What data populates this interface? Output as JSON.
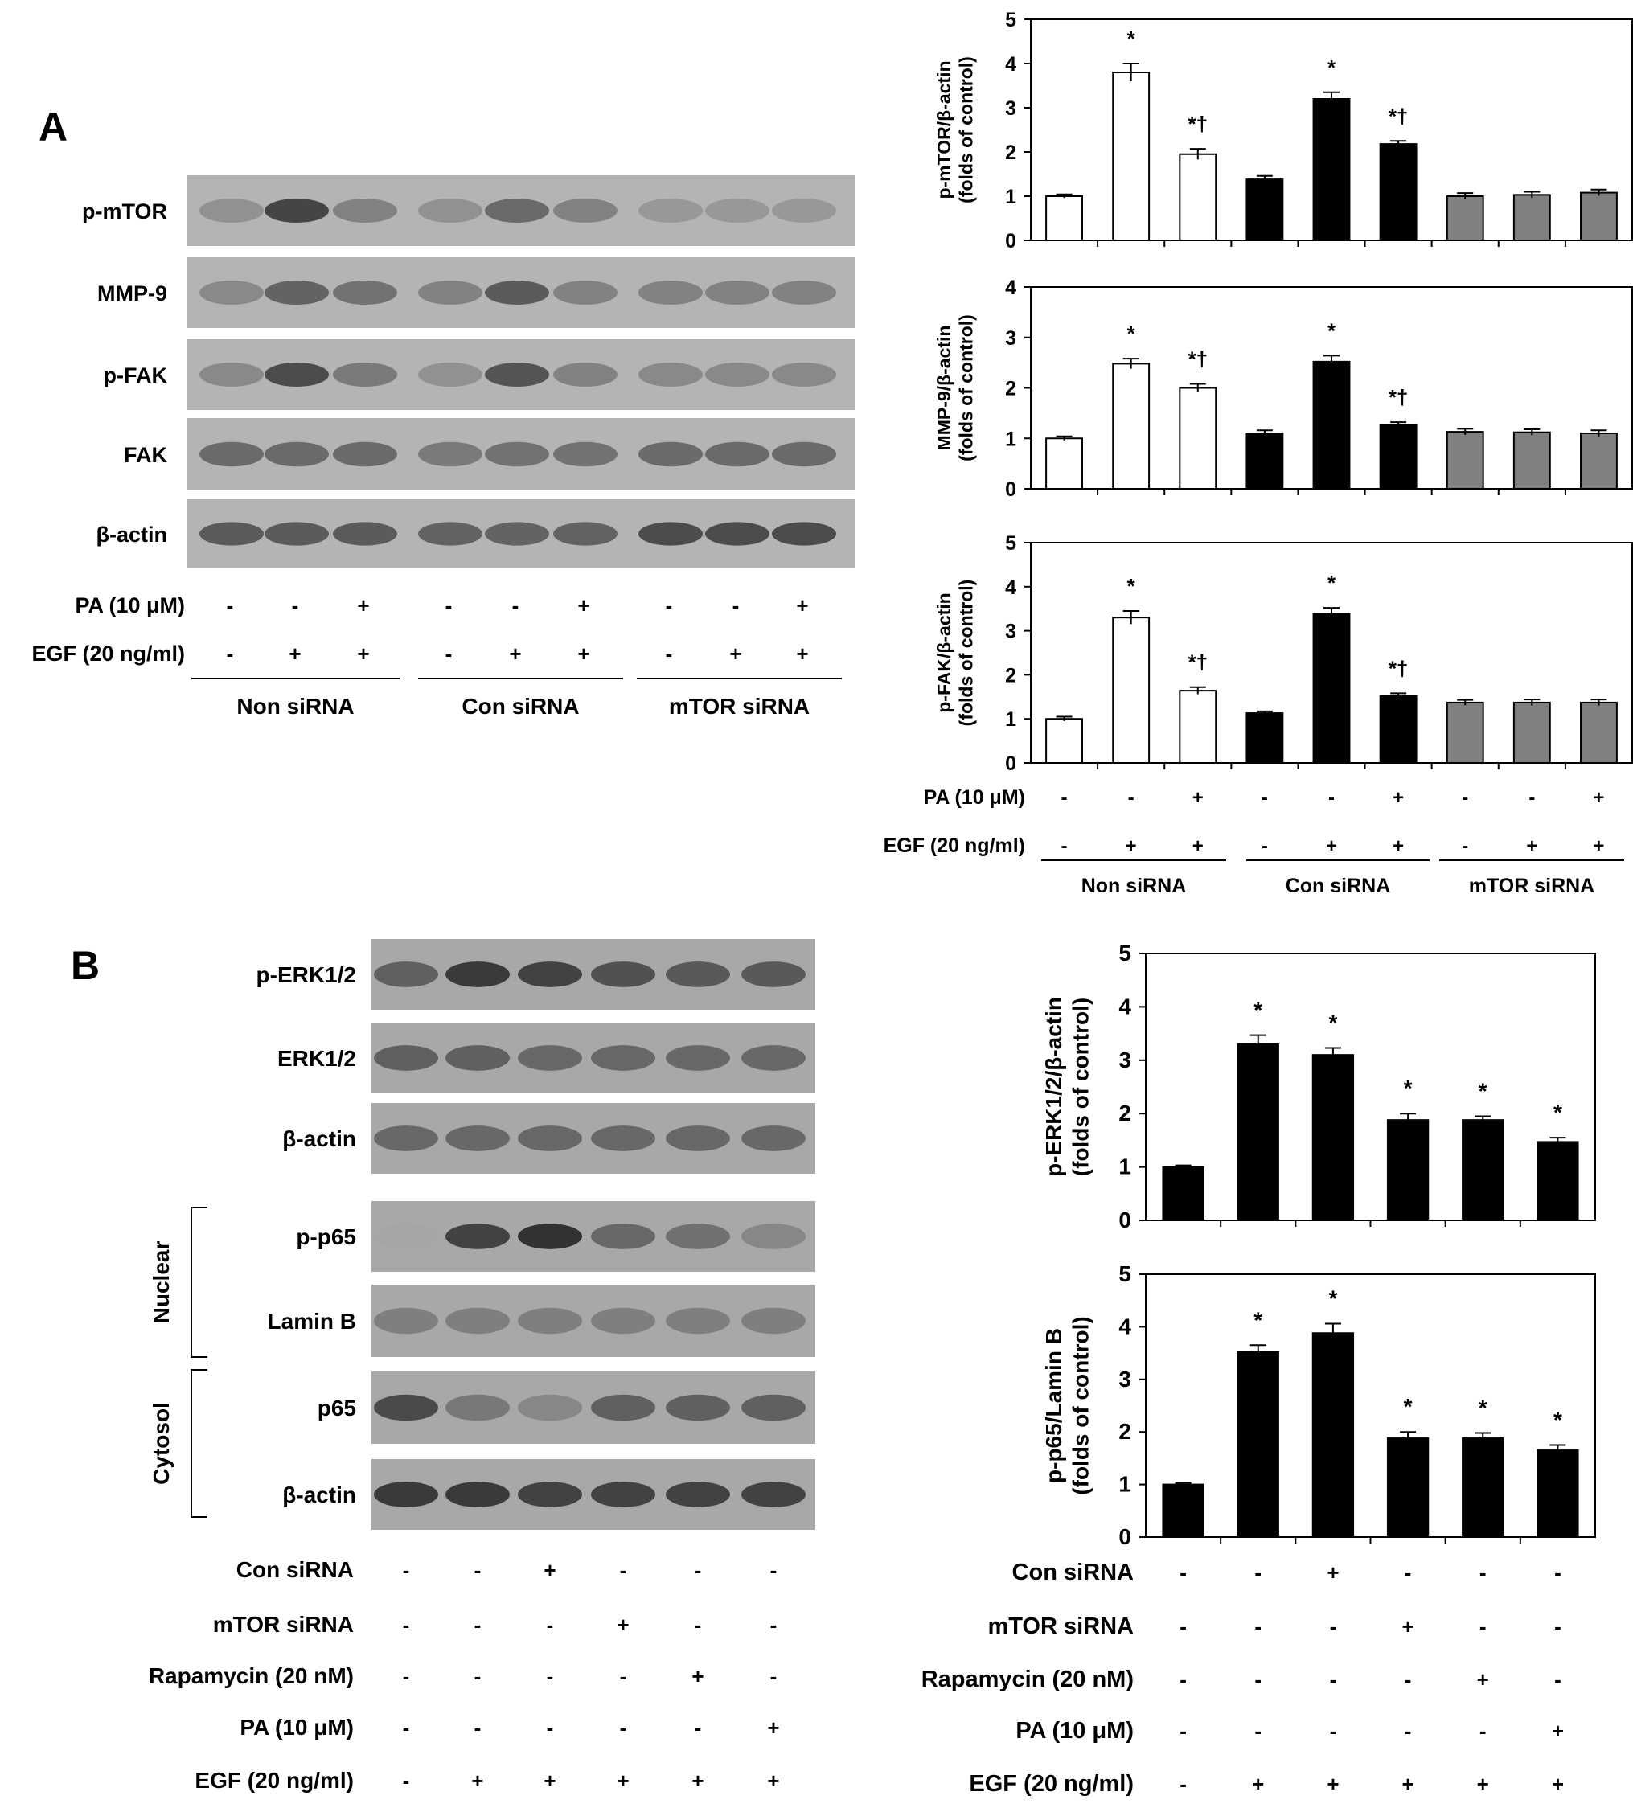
{
  "panel_labels": {
    "a": "A",
    "b": "B"
  },
  "panel_a": {
    "blot_labels": [
      "p-mTOR",
      "MMP-9",
      "p-FAK",
      "FAK",
      "β-actin"
    ],
    "treatments": [
      {
        "label": "PA (10 μM)",
        "signs": [
          "-",
          "-",
          "+",
          "-",
          "-",
          "+",
          "-",
          "-",
          "+"
        ]
      },
      {
        "label": "EGF (20 ng/ml)",
        "signs": [
          "-",
          "+",
          "+",
          "-",
          "+",
          "+",
          "-",
          "+",
          "+"
        ]
      }
    ],
    "groups": [
      "Non siRNA",
      "Con siRNA",
      "mTOR siRNA"
    ],
    "lane_intensity": {
      "p-mTOR": [
        0.35,
        0.85,
        0.45,
        0.35,
        0.6,
        0.45,
        0.3,
        0.3,
        0.3
      ],
      "MMP-9": [
        0.4,
        0.65,
        0.55,
        0.45,
        0.7,
        0.45,
        0.45,
        0.45,
        0.45
      ],
      "p-FAK": [
        0.4,
        0.8,
        0.5,
        0.35,
        0.75,
        0.45,
        0.4,
        0.4,
        0.4
      ],
      "FAK": [
        0.6,
        0.6,
        0.6,
        0.5,
        0.55,
        0.55,
        0.6,
        0.6,
        0.6
      ],
      "β-actin": [
        0.7,
        0.7,
        0.7,
        0.65,
        0.65,
        0.65,
        0.8,
        0.8,
        0.8
      ]
    }
  },
  "panel_b": {
    "blot_labels": [
      "p-ERK1/2",
      "ERK1/2",
      "β-actin",
      "p-p65",
      "Lamin B",
      "p65",
      "β-actin"
    ],
    "bracket_labels": [
      "Nuclear",
      "Cytosol"
    ],
    "treatments": [
      {
        "label": "Con siRNA",
        "signs": [
          "-",
          "-",
          "+",
          "-",
          "-",
          "-"
        ]
      },
      {
        "label": "mTOR siRNA",
        "signs": [
          "-",
          "-",
          "-",
          "+",
          "-",
          "-"
        ]
      },
      {
        "label": "Rapamycin (20 nM)",
        "signs": [
          "-",
          "-",
          "-",
          "-",
          "+",
          "-"
        ]
      },
      {
        "label": "PA (10 μM)",
        "signs": [
          "-",
          "-",
          "-",
          "-",
          "-",
          "+"
        ]
      },
      {
        "label": "EGF (20 ng/ml)",
        "signs": [
          "-",
          "+",
          "+",
          "+",
          "+",
          "+"
        ]
      }
    ],
    "lane_intensity": {
      "p-ERK1/2": [
        0.6,
        0.85,
        0.8,
        0.7,
        0.65,
        0.65
      ],
      "ERK1/2": [
        0.6,
        0.6,
        0.55,
        0.55,
        0.55,
        0.55
      ],
      "β-actin": [
        0.55,
        0.55,
        0.55,
        0.55,
        0.55,
        0.55
      ],
      "p-p65": [
        0.15,
        0.8,
        0.9,
        0.55,
        0.5,
        0.35
      ],
      "Lamin B": [
        0.4,
        0.4,
        0.4,
        0.4,
        0.4,
        0.4
      ],
      "p65": [
        0.75,
        0.45,
        0.35,
        0.6,
        0.6,
        0.6
      ],
      "β-actin 2": [
        0.85,
        0.85,
        0.8,
        0.8,
        0.8,
        0.8
      ]
    }
  },
  "chart_data": [
    {
      "type": "bar",
      "ylabel": "p-mTOR/β-actin (folds of control)",
      "ylim": [
        0,
        5
      ],
      "yticks": [
        0,
        1,
        2,
        3,
        4,
        5
      ],
      "values": [
        1.0,
        3.8,
        1.95,
        1.38,
        3.2,
        2.18,
        1.0,
        1.03,
        1.08
      ],
      "errors": [
        0.04,
        0.2,
        0.12,
        0.08,
        0.15,
        0.07,
        0.07,
        0.07,
        0.07
      ],
      "fills": [
        "#ffffff",
        "#ffffff",
        "#ffffff",
        "#000000",
        "#000000",
        "#000000",
        "#808080",
        "#808080",
        "#808080"
      ],
      "annotations": [
        "",
        "*",
        "*†",
        "",
        "*",
        "*†",
        "",
        "",
        ""
      ]
    },
    {
      "type": "bar",
      "ylabel": "MMP-9/β-actin (folds of control)",
      "ylim": [
        0,
        4
      ],
      "yticks": [
        0,
        1,
        2,
        3,
        4
      ],
      "values": [
        1.0,
        2.48,
        2.0,
        1.1,
        2.52,
        1.26,
        1.13,
        1.12,
        1.1
      ],
      "errors": [
        0.04,
        0.1,
        0.08,
        0.06,
        0.12,
        0.06,
        0.06,
        0.06,
        0.06
      ],
      "fills": [
        "#ffffff",
        "#ffffff",
        "#ffffff",
        "#000000",
        "#000000",
        "#000000",
        "#808080",
        "#808080",
        "#808080"
      ],
      "annotations": [
        "",
        "*",
        "*†",
        "",
        "*",
        "*†",
        "",
        "",
        ""
      ]
    },
    {
      "type": "bar",
      "ylabel": "p-FAK/β-actin (folds of control)",
      "ylim": [
        0,
        5
      ],
      "yticks": [
        0,
        1,
        2,
        3,
        4,
        5
      ],
      "values": [
        1.0,
        3.3,
        1.64,
        1.13,
        3.38,
        1.52,
        1.37,
        1.37,
        1.37
      ],
      "errors": [
        0.05,
        0.15,
        0.08,
        0.04,
        0.14,
        0.06,
        0.06,
        0.07,
        0.07
      ],
      "fills": [
        "#ffffff",
        "#ffffff",
        "#ffffff",
        "#000000",
        "#000000",
        "#000000",
        "#808080",
        "#808080",
        "#808080"
      ],
      "annotations": [
        "",
        "*",
        "*†",
        "",
        "*",
        "*†",
        "",
        "",
        ""
      ]
    },
    {
      "type": "bar",
      "ylabel": "p-ERK1/2/β-actin (folds of control)",
      "ylim": [
        0,
        5
      ],
      "yticks": [
        0,
        1,
        2,
        3,
        4,
        5
      ],
      "values": [
        1.0,
        3.3,
        3.1,
        1.88,
        1.88,
        1.47
      ],
      "errors": [
        0.03,
        0.17,
        0.13,
        0.12,
        0.07,
        0.08
      ],
      "fills": [
        "#000000",
        "#000000",
        "#000000",
        "#000000",
        "#000000",
        "#000000"
      ],
      "annotations": [
        "",
        "*",
        "*",
        "*",
        "*",
        "*"
      ]
    },
    {
      "type": "bar",
      "ylabel": "p-p65/Lamin B (folds of control)",
      "ylim": [
        0,
        5
      ],
      "yticks": [
        0,
        1,
        2,
        3,
        4,
        5
      ],
      "values": [
        1.0,
        3.52,
        3.88,
        1.88,
        1.88,
        1.65
      ],
      "errors": [
        0.03,
        0.13,
        0.18,
        0.12,
        0.1,
        0.1
      ],
      "fills": [
        "#000000",
        "#000000",
        "#000000",
        "#000000",
        "#000000",
        "#000000"
      ],
      "annotations": [
        "",
        "*",
        "*",
        "*",
        "*",
        "*"
      ]
    }
  ],
  "chart_a_treatments": [
    {
      "label": "PA (10 μM)",
      "signs": [
        "-",
        "-",
        "+",
        "-",
        "-",
        "+",
        "-",
        "-",
        "+"
      ]
    },
    {
      "label": "EGF (20 ng/ml)",
      "signs": [
        "-",
        "+",
        "+",
        "-",
        "+",
        "+",
        "-",
        "+",
        "+"
      ]
    }
  ],
  "chart_a_groups": [
    "Non siRNA",
    "Con siRNA",
    "mTOR siRNA"
  ],
  "chart_b_treatments": [
    {
      "label": "Con siRNA",
      "signs": [
        "-",
        "-",
        "+",
        "-",
        "-",
        "-"
      ]
    },
    {
      "label": "mTOR siRNA",
      "signs": [
        "-",
        "-",
        "-",
        "+",
        "-",
        "-"
      ]
    },
    {
      "label": "Rapamycin (20 nM)",
      "signs": [
        "-",
        "-",
        "-",
        "-",
        "+",
        "-"
      ]
    },
    {
      "label": "PA (10 μM)",
      "signs": [
        "-",
        "-",
        "-",
        "-",
        "-",
        "+"
      ]
    },
    {
      "label": "EGF (20 ng/ml)",
      "signs": [
        "-",
        "+",
        "+",
        "+",
        "+",
        "+"
      ]
    }
  ]
}
